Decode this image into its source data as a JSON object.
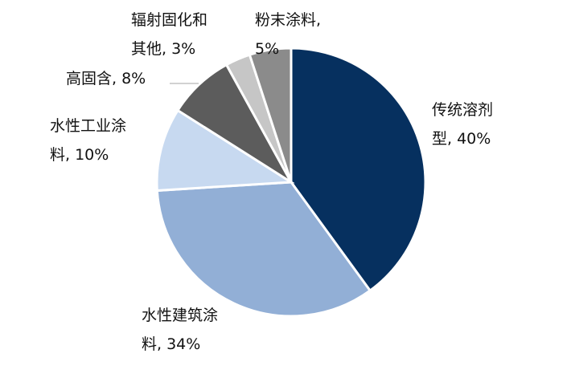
{
  "chart_data": {
    "type": "pie",
    "slices": [
      {
        "label_lines": [
          "传统溶剂",
          "型, 40%"
        ],
        "value": 40,
        "color": "#06305f"
      },
      {
        "label_lines": [
          "水性建筑涂",
          "料, 34%"
        ],
        "value": 34,
        "color": "#92afd6"
      },
      {
        "label_lines": [
          "水性工业涂",
          "料, 10%"
        ],
        "value": 10,
        "color": "#c7d9f0"
      },
      {
        "label_lines": [
          "高固含, 8%"
        ],
        "value": 8,
        "color": "#5c5c5c"
      },
      {
        "label_lines": [
          "辐射固化和",
          "其他, 3%"
        ],
        "value": 3,
        "color": "#c6c6c6"
      },
      {
        "label_lines": [
          "粉末涂料,",
          "5%"
        ],
        "value": 5,
        "color": "#8b8b8b"
      }
    ]
  }
}
